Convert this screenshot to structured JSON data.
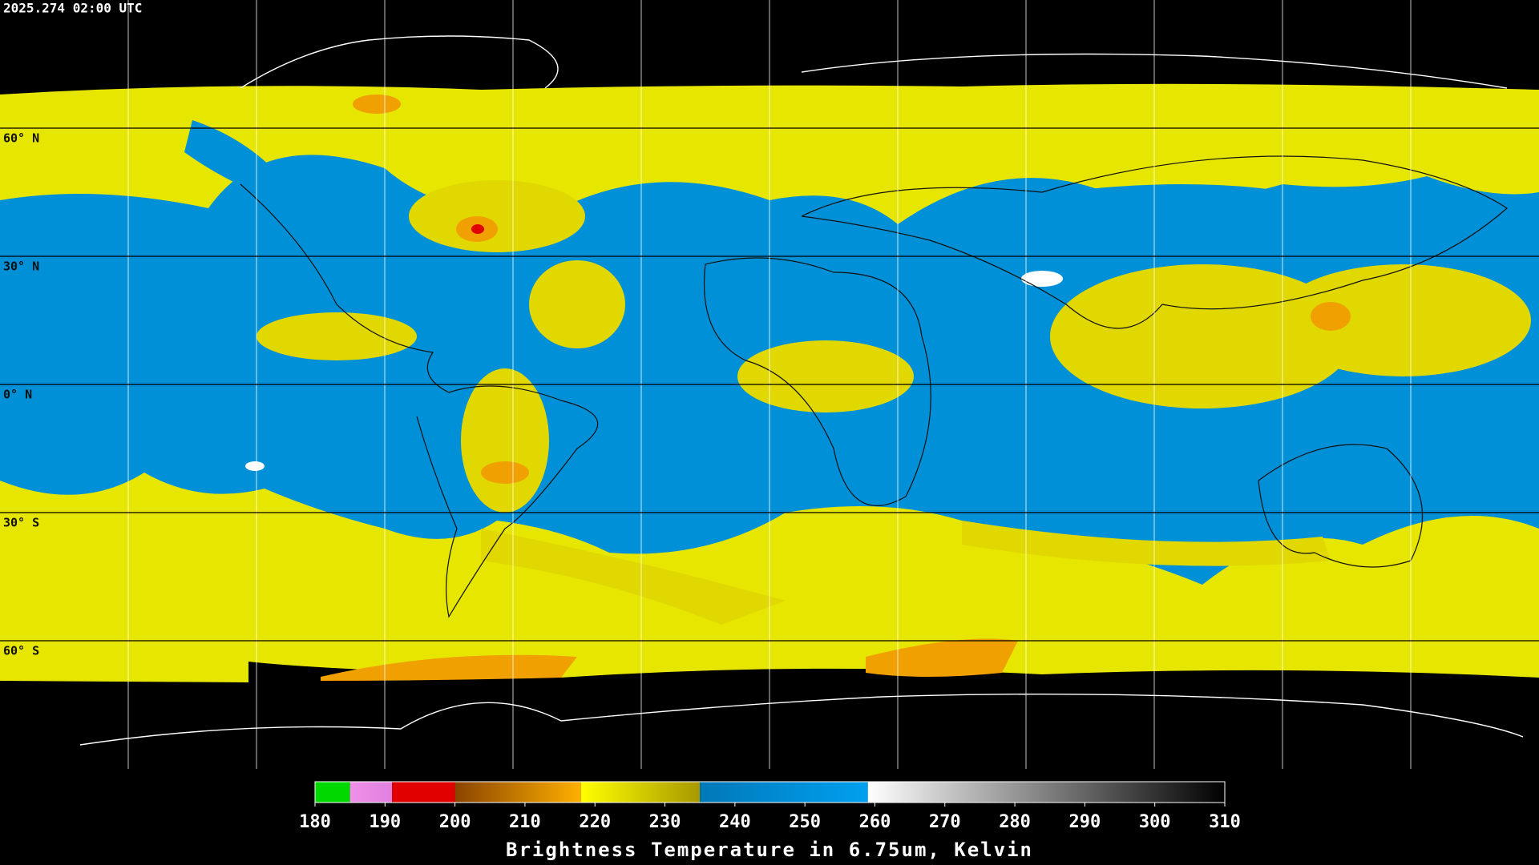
{
  "header": {
    "timestamp": "2025.274 02:00 UTC"
  },
  "map": {
    "lat_ticks": [
      {
        "value": 60,
        "label": "60° N"
      },
      {
        "value": 30,
        "label": "30° N"
      },
      {
        "value": 0,
        "label": "0° N"
      },
      {
        "value": -30,
        "label": "30° S"
      },
      {
        "value": -60,
        "label": "60° S"
      }
    ],
    "lat_range": [
      90,
      -90
    ]
  },
  "colorbar": {
    "range": [
      180,
      310
    ],
    "ticks": [
      180,
      190,
      200,
      210,
      220,
      230,
      240,
      250,
      260,
      270,
      280,
      290,
      300,
      310
    ],
    "segments": [
      {
        "from": 180,
        "to": 185,
        "colors": [
          "#00d800",
          "#00d800"
        ]
      },
      {
        "from": 185,
        "to": 191,
        "colors": [
          "#f090e8",
          "#e080e0"
        ]
      },
      {
        "from": 191,
        "to": 200,
        "colors": [
          "#e00000",
          "#e00000"
        ]
      },
      {
        "from": 200,
        "to": 218,
        "colors": [
          "#8a4400",
          "#ffb000"
        ]
      },
      {
        "from": 218,
        "to": 235,
        "colors": [
          "#ffff00",
          "#a89800"
        ]
      },
      {
        "from": 235,
        "to": 259,
        "colors": [
          "#0078b8",
          "#00a0f0"
        ]
      },
      {
        "from": 259,
        "to": 310,
        "colors": [
          "#ffffff",
          "#000000"
        ]
      }
    ],
    "label": "Brightness Temperature in 6.75um, Kelvin"
  }
}
